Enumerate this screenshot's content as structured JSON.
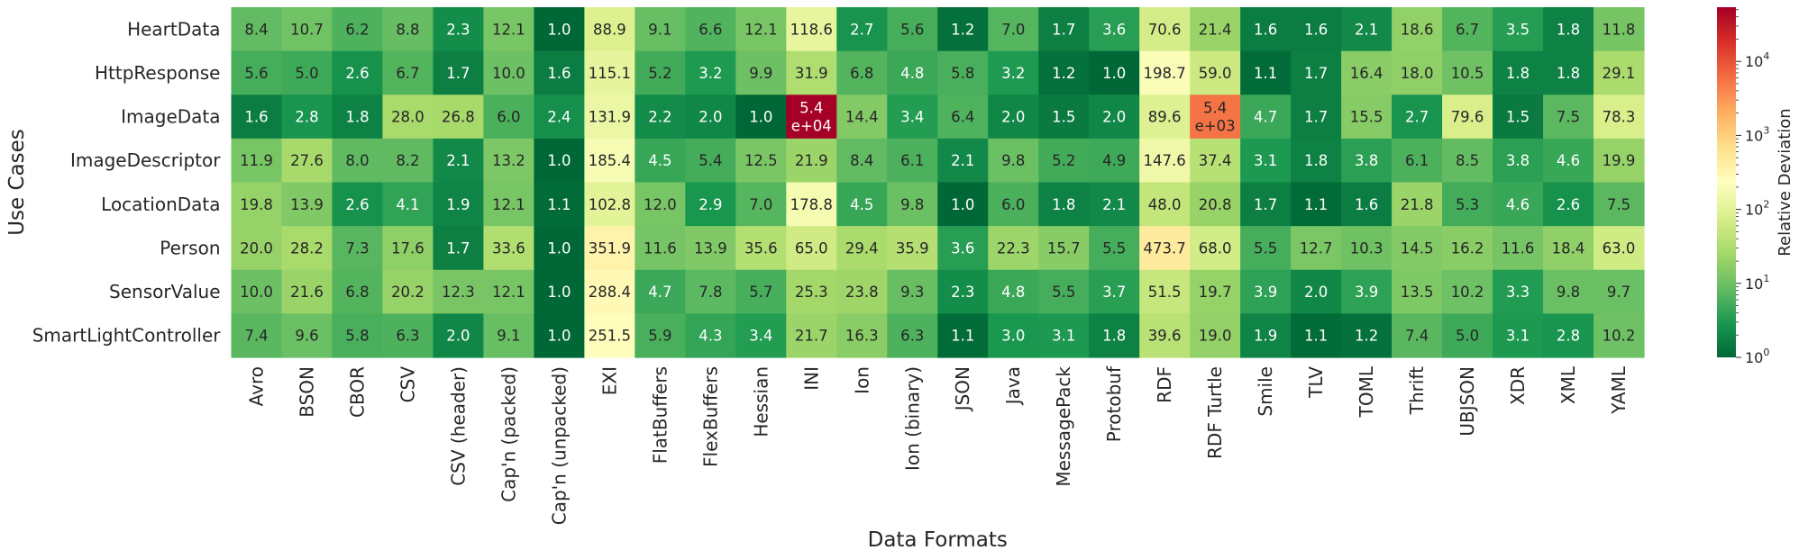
{
  "chart_data": {
    "type": "heatmap",
    "xlabel": "Data Formats",
    "ylabel": "Use Cases",
    "columns": [
      "Avro",
      "BSON",
      "CBOR",
      "CSV",
      "CSV (header)",
      "Cap'n (packed)",
      "Cap'n (unpacked)",
      "EXI",
      "FlatBuffers",
      "FlexBuffers",
      "Hessian",
      "INI",
      "Ion",
      "Ion (binary)",
      "JSON",
      "Java",
      "MessagePack",
      "Protobuf",
      "RDF",
      "RDF Turtle",
      "Smile",
      "TLV",
      "TOML",
      "Thrift",
      "UBJSON",
      "XDR",
      "XML",
      "YAML"
    ],
    "rows": [
      "HeartData",
      "HttpResponse",
      "ImageData",
      "ImageDescriptor",
      "LocationData",
      "Person",
      "SensorValue",
      "SmartLightController"
    ],
    "values": [
      [
        8.4,
        10.7,
        6.2,
        8.8,
        2.3,
        12.1,
        1.0,
        88.9,
        9.1,
        6.6,
        12.1,
        118.6,
        2.7,
        5.6,
        1.2,
        7.0,
        1.7,
        3.6,
        70.6,
        21.4,
        1.6,
        1.6,
        2.1,
        18.6,
        6.7,
        3.5,
        1.8,
        11.8
      ],
      [
        5.6,
        5.0,
        2.6,
        6.7,
        1.7,
        10.0,
        1.6,
        115.1,
        5.2,
        3.2,
        9.9,
        31.9,
        6.8,
        4.8,
        5.8,
        3.2,
        1.2,
        1.0,
        198.7,
        59.0,
        1.1,
        1.7,
        16.4,
        18.0,
        10.5,
        1.8,
        1.8,
        29.1
      ],
      [
        1.6,
        2.8,
        1.8,
        28.0,
        26.8,
        6.0,
        2.4,
        131.9,
        2.2,
        2.0,
        1.0,
        54000,
        14.4,
        3.4,
        6.4,
        2.0,
        1.5,
        2.0,
        89.6,
        5400,
        4.7,
        1.7,
        15.5,
        2.7,
        79.6,
        1.5,
        7.5,
        78.3
      ],
      [
        11.9,
        27.6,
        8.0,
        8.2,
        2.1,
        13.2,
        1.0,
        185.4,
        4.5,
        5.4,
        12.5,
        21.9,
        8.4,
        6.1,
        2.1,
        9.8,
        5.2,
        4.9,
        147.6,
        37.4,
        3.1,
        1.8,
        3.8,
        6.1,
        8.5,
        3.8,
        4.6,
        19.9
      ],
      [
        19.8,
        13.9,
        2.6,
        4.1,
        1.9,
        12.1,
        1.1,
        102.8,
        12.0,
        2.9,
        7.0,
        178.8,
        4.5,
        9.8,
        1.0,
        6.0,
        1.8,
        2.1,
        48.0,
        20.8,
        1.7,
        1.1,
        1.6,
        21.8,
        5.3,
        4.6,
        2.6,
        7.5
      ],
      [
        20.0,
        28.2,
        7.3,
        17.6,
        1.7,
        33.6,
        1.0,
        351.9,
        11.6,
        13.9,
        35.6,
        65.0,
        29.4,
        35.9,
        3.6,
        22.3,
        15.7,
        5.5,
        473.7,
        68.0,
        5.5,
        12.7,
        10.3,
        14.5,
        16.2,
        11.6,
        18.4,
        63.0
      ],
      [
        10.0,
        21.6,
        6.8,
        20.2,
        12.3,
        12.1,
        1.0,
        288.4,
        4.7,
        7.8,
        5.7,
        25.3,
        23.8,
        9.3,
        2.3,
        4.8,
        5.5,
        3.7,
        51.5,
        19.7,
        3.9,
        2.0,
        3.9,
        13.5,
        10.2,
        3.3,
        9.8,
        9.7
      ],
      [
        7.4,
        9.6,
        5.8,
        6.3,
        2.0,
        9.1,
        1.0,
        251.5,
        5.9,
        4.3,
        3.4,
        21.7,
        16.3,
        6.3,
        1.1,
        3.0,
        3.1,
        1.8,
        39.6,
        19.0,
        1.9,
        1.1,
        1.2,
        7.4,
        5.0,
        3.1,
        2.8,
        10.2
      ]
    ],
    "labels": [
      [
        "8.4",
        "10.7",
        "6.2",
        "8.8",
        "2.3",
        "12.1",
        "1.0",
        "88.9",
        "9.1",
        "6.6",
        "12.1",
        "118.6",
        "2.7",
        "5.6",
        "1.2",
        "7.0",
        "1.7",
        "3.6",
        "70.6",
        "21.4",
        "1.6",
        "1.6",
        "2.1",
        "18.6",
        "6.7",
        "3.5",
        "1.8",
        "11.8"
      ],
      [
        "5.6",
        "5.0",
        "2.6",
        "6.7",
        "1.7",
        "10.0",
        "1.6",
        "115.1",
        "5.2",
        "3.2",
        "9.9",
        "31.9",
        "6.8",
        "4.8",
        "5.8",
        "3.2",
        "1.2",
        "1.0",
        "198.7",
        "59.0",
        "1.1",
        "1.7",
        "16.4",
        "18.0",
        "10.5",
        "1.8",
        "1.8",
        "29.1"
      ],
      [
        "1.6",
        "2.8",
        "1.8",
        "28.0",
        "26.8",
        "6.0",
        "2.4",
        "131.9",
        "2.2",
        "2.0",
        "1.0",
        "5.4\ne+04",
        "14.4",
        "3.4",
        "6.4",
        "2.0",
        "1.5",
        "2.0",
        "89.6",
        "5.4\ne+03",
        "4.7",
        "1.7",
        "15.5",
        "2.7",
        "79.6",
        "1.5",
        "7.5",
        "78.3"
      ],
      [
        "11.9",
        "27.6",
        "8.0",
        "8.2",
        "2.1",
        "13.2",
        "1.0",
        "185.4",
        "4.5",
        "5.4",
        "12.5",
        "21.9",
        "8.4",
        "6.1",
        "2.1",
        "9.8",
        "5.2",
        "4.9",
        "147.6",
        "37.4",
        "3.1",
        "1.8",
        "3.8",
        "6.1",
        "8.5",
        "3.8",
        "4.6",
        "19.9"
      ],
      [
        "19.8",
        "13.9",
        "2.6",
        "4.1",
        "1.9",
        "12.1",
        "1.1",
        "102.8",
        "12.0",
        "2.9",
        "7.0",
        "178.8",
        "4.5",
        "9.8",
        "1.0",
        "6.0",
        "1.8",
        "2.1",
        "48.0",
        "20.8",
        "1.7",
        "1.1",
        "1.6",
        "21.8",
        "5.3",
        "4.6",
        "2.6",
        "7.5"
      ],
      [
        "20.0",
        "28.2",
        "7.3",
        "17.6",
        "1.7",
        "33.6",
        "1.0",
        "351.9",
        "11.6",
        "13.9",
        "35.6",
        "65.0",
        "29.4",
        "35.9",
        "3.6",
        "22.3",
        "15.7",
        "5.5",
        "473.7",
        "68.0",
        "5.5",
        "12.7",
        "10.3",
        "14.5",
        "16.2",
        "11.6",
        "18.4",
        "63.0"
      ],
      [
        "10.0",
        "21.6",
        "6.8",
        "20.2",
        "12.3",
        "12.1",
        "1.0",
        "288.4",
        "4.7",
        "7.8",
        "5.7",
        "25.3",
        "23.8",
        "9.3",
        "2.3",
        "4.8",
        "5.5",
        "3.7",
        "51.5",
        "19.7",
        "3.9",
        "2.0",
        "3.9",
        "13.5",
        "10.2",
        "3.3",
        "9.8",
        "9.7"
      ],
      [
        "7.4",
        "9.6",
        "5.8",
        "6.3",
        "2.0",
        "9.1",
        "1.0",
        "251.5",
        "5.9",
        "4.3",
        "3.4",
        "21.7",
        "16.3",
        "6.3",
        "1.1",
        "3.0",
        "3.1",
        "1.8",
        "39.6",
        "19.0",
        "1.9",
        "1.1",
        "1.2",
        "7.4",
        "5.0",
        "3.1",
        "2.8",
        "10.2"
      ]
    ],
    "colorbar": {
      "label": "Relative Deviation",
      "scale": "log",
      "range": [
        1,
        54000
      ],
      "colormap": "RdYlGn_r",
      "ticks": [
        {
          "value": 1,
          "base": "10",
          "exp": "0"
        },
        {
          "value": 10,
          "base": "10",
          "exp": "1"
        },
        {
          "value": 100,
          "base": "10",
          "exp": "2"
        },
        {
          "value": 1000,
          "base": "10",
          "exp": "3"
        },
        {
          "value": 10000,
          "base": "10",
          "exp": "4"
        }
      ]
    }
  }
}
